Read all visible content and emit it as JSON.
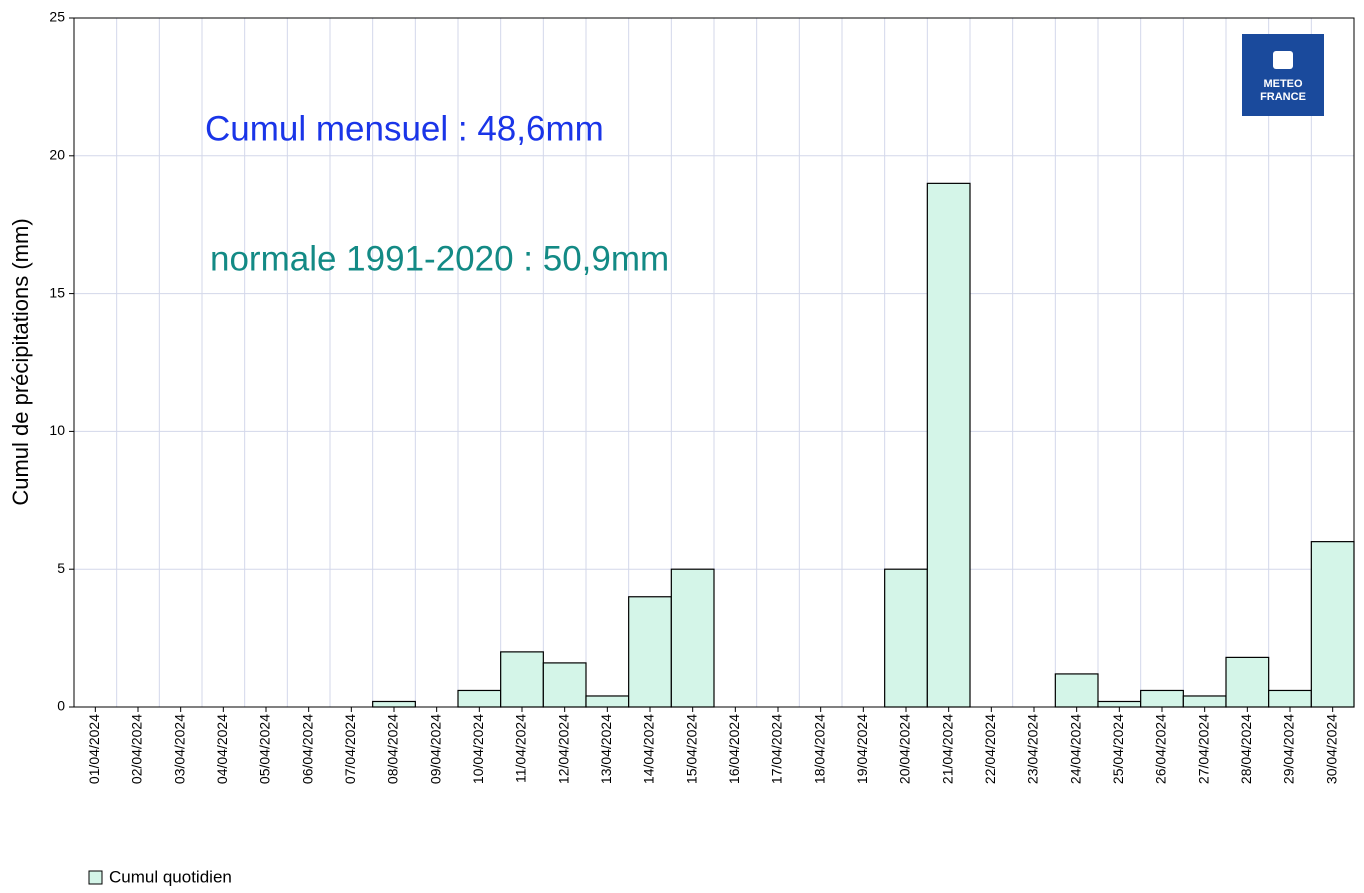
{
  "chart_data": {
    "type": "bar",
    "y_label": "Cumul de précipitations (mm)",
    "annotations": [
      "Cumul mensuel : 48,6mm",
      "normale 1991-2020 : 50,9mm"
    ],
    "annotation_colors": [
      "#1a35e8",
      "#138a85"
    ],
    "logo": [
      "METEO",
      "FRANCE"
    ],
    "categories": [
      "01/04/2024",
      "02/04/2024",
      "03/04/2024",
      "04/04/2024",
      "05/04/2024",
      "06/04/2024",
      "07/04/2024",
      "08/04/2024",
      "09/04/2024",
      "10/04/2024",
      "11/04/2024",
      "12/04/2024",
      "13/04/2024",
      "14/04/2024",
      "15/04/2024",
      "16/04/2024",
      "17/04/2024",
      "18/04/2024",
      "19/04/2024",
      "20/04/2024",
      "21/04/2024",
      "22/04/2024",
      "23/04/2024",
      "24/04/2024",
      "25/04/2024",
      "26/04/2024",
      "27/04/2024",
      "28/04/2024",
      "29/04/2024",
      "30/04/2024"
    ],
    "series": [
      {
        "name": "Cumul quotidien",
        "color": "#d4f5e8",
        "values": [
          0,
          0,
          0,
          0,
          0,
          0,
          0,
          0.2,
          0,
          0.6,
          2,
          1.6,
          0.4,
          4,
          5,
          0,
          0,
          0,
          0,
          5,
          19,
          0,
          0,
          1.2,
          0.2,
          0.6,
          0.4,
          1.8,
          0.6,
          6
        ]
      }
    ],
    "ylim": [
      0,
      25
    ],
    "yticks": [
      0,
      5,
      10,
      15,
      20,
      25
    ],
    "grid": true,
    "legend": "bottom-left"
  }
}
